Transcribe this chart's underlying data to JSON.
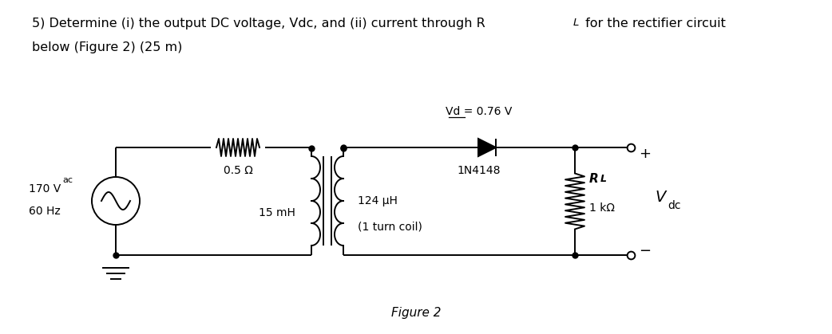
{
  "bg_color": "#ffffff",
  "circuit_color": "#000000",
  "title_text": "5) Determine (i) the output DC voltage, Vdc, and (ii) current through R",
  "title_RL": "L",
  "title_end": " for the rectifier circuit",
  "title_line2": "below (Figure 2) (25 m)",
  "figure_label": "Figure 2",
  "source_v": "170 V",
  "source_sub": "ac",
  "source_freq": "60 Hz",
  "res_label": "0.5 Ω",
  "ind_label": "15 mH",
  "cap_label": "124 μH",
  "cap_sublabel": "(1 turn coil)",
  "diode_label": "1N4148",
  "vd_label": "Vd = 0.76 V",
  "rl_label": "R",
  "rl_sub": "L",
  "rl_val": "1 kΩ",
  "vdc_main": "V",
  "vdc_sub": "dc",
  "lw": 1.4
}
